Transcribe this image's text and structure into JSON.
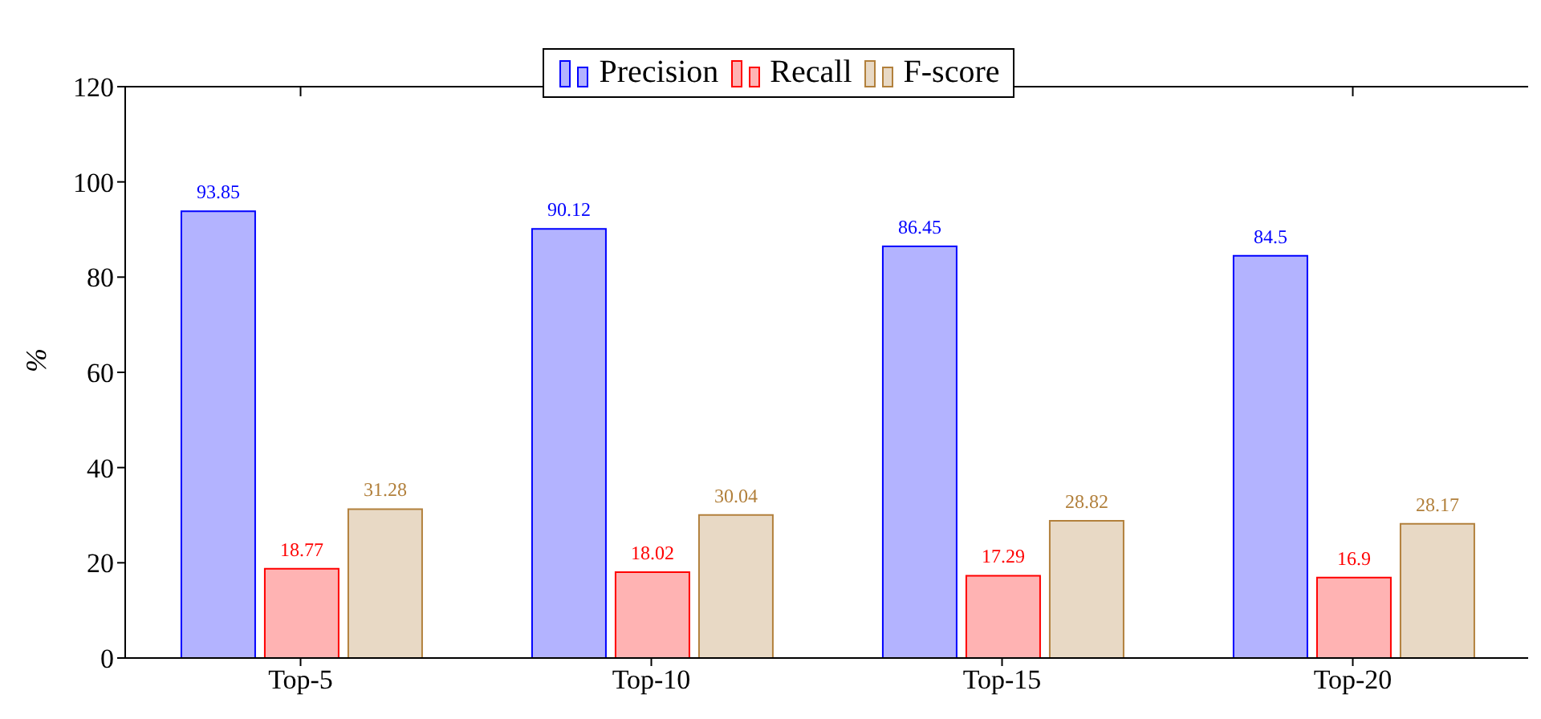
{
  "chart_data": {
    "type": "bar",
    "ylabel": "%",
    "categories": [
      "Top-5",
      "Top-10",
      "Top-15",
      "Top-20"
    ],
    "series": [
      {
        "name": "Precision",
        "color": "#b3b3ff",
        "values": [
          93.85,
          90.12,
          86.45,
          84.5
        ]
      },
      {
        "name": "Recall",
        "color": "#ffb3b3",
        "values": [
          18.77,
          18.02,
          17.29,
          16.9
        ]
      },
      {
        "name": "F-score",
        "color": "#e8d9c5",
        "values": [
          31.28,
          30.04,
          28.82,
          28.17
        ]
      }
    ],
    "ylim": [
      0,
      120
    ],
    "yticks": [
      0,
      20,
      40,
      60,
      80,
      100,
      120
    ],
    "data_labels": true,
    "legend": "top",
    "grid": false
  }
}
